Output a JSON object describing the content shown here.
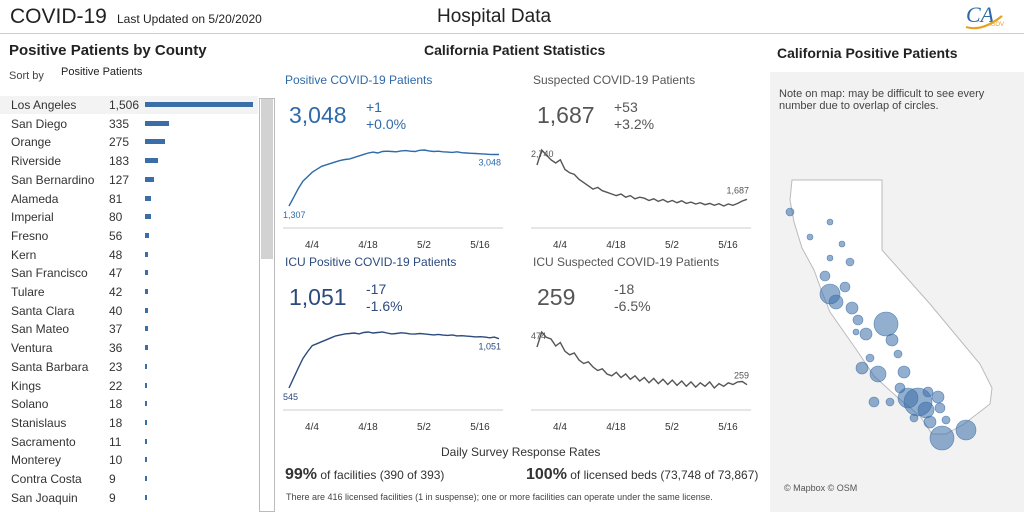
{
  "header": {
    "app_title": "COVID-19",
    "updated": "Last Updated on 5/20/2020",
    "page_title": "Hospital Data",
    "logo_text": "CA.GOV",
    "logo_icon": "ca-gov-logo"
  },
  "left": {
    "title": "Positive Patients by County",
    "sort_label": "Sort by",
    "sort_value": "Positive Patients",
    "counties": [
      {
        "name": "Los Angeles",
        "count": "1,506",
        "value": 1506
      },
      {
        "name": "San Diego",
        "count": "335",
        "value": 335
      },
      {
        "name": "Orange",
        "count": "275",
        "value": 275
      },
      {
        "name": "Riverside",
        "count": "183",
        "value": 183
      },
      {
        "name": "San Bernardino",
        "count": "127",
        "value": 127
      },
      {
        "name": "Alameda",
        "count": "81",
        "value": 81
      },
      {
        "name": "Imperial",
        "count": "80",
        "value": 80
      },
      {
        "name": "Fresno",
        "count": "56",
        "value": 56
      },
      {
        "name": "Kern",
        "count": "48",
        "value": 48
      },
      {
        "name": "San Francisco",
        "count": "47",
        "value": 47
      },
      {
        "name": "Tulare",
        "count": "42",
        "value": 42
      },
      {
        "name": "Santa Clara",
        "count": "40",
        "value": 40
      },
      {
        "name": "San Mateo",
        "count": "37",
        "value": 37
      },
      {
        "name": "Ventura",
        "count": "36",
        "value": 36
      },
      {
        "name": "Santa Barbara",
        "count": "23",
        "value": 23
      },
      {
        "name": "Kings",
        "count": "22",
        "value": 22
      },
      {
        "name": "Solano",
        "count": "18",
        "value": 18
      },
      {
        "name": "Stanislaus",
        "count": "18",
        "value": 18
      },
      {
        "name": "Sacramento",
        "count": "11",
        "value": 11
      },
      {
        "name": "Monterey",
        "count": "10",
        "value": 10
      },
      {
        "name": "Contra Costa",
        "count": "9",
        "value": 9
      },
      {
        "name": "San Joaquin",
        "count": "9",
        "value": 9
      }
    ]
  },
  "middle": {
    "title": "California Patient Statistics",
    "ticks": [
      "4/4",
      "4/18",
      "5/2",
      "5/16"
    ],
    "panels": [
      {
        "label": "Positive COVID-19 Patients",
        "big": "3,048",
        "delta1": "+1",
        "delta2": "+0.0%",
        "start": "1,307",
        "end": "3,048",
        "color": "#2e6aa9",
        "series": [
          1307,
          1600,
          1900,
          2150,
          2300,
          2450,
          2550,
          2650,
          2700,
          2750,
          2800,
          2850,
          2880,
          2900,
          2950,
          3000,
          3050,
          3100,
          3130,
          3100,
          3150,
          3160,
          3150,
          3140,
          3170,
          3180,
          3160,
          3150,
          3190,
          3200,
          3170,
          3150,
          3160,
          3140,
          3130,
          3120,
          3140,
          3110,
          3100,
          3090,
          3080,
          3070,
          3060,
          3050,
          3047,
          3048
        ]
      },
      {
        "label": "Suspected COVID-19 Patients",
        "big": "1,687",
        "delta1": "+53",
        "delta2": "+3.2%",
        "start": "2,740",
        "end": "1,687",
        "color": "#555555",
        "series": [
          2740,
          3200,
          3050,
          2900,
          2800,
          2900,
          2600,
          2500,
          2450,
          2300,
          2200,
          2100,
          2000,
          2050,
          1950,
          1900,
          1850,
          1800,
          1850,
          1750,
          1800,
          1700,
          1750,
          1720,
          1650,
          1700,
          1620,
          1680,
          1600,
          1650,
          1580,
          1640,
          1560,
          1600,
          1540,
          1580,
          1520,
          1560,
          1500,
          1550,
          1480,
          1540,
          1500,
          1560,
          1634,
          1687
        ]
      },
      {
        "label": "ICU Positive COVID-19 Patients",
        "big": "1,051",
        "delta1": "-17",
        "delta2": "-1.6%",
        "start": "545",
        "end": "1,051",
        "color": "#2b4a7e",
        "series": [
          545,
          650,
          750,
          850,
          920,
          980,
          1000,
          1020,
          1040,
          1060,
          1080,
          1090,
          1100,
          1105,
          1110,
          1100,
          1115,
          1120,
          1110,
          1115,
          1120,
          1110,
          1100,
          1105,
          1112,
          1108,
          1100,
          1098,
          1105,
          1100,
          1095,
          1090,
          1095,
          1088,
          1085,
          1090,
          1080,
          1082,
          1078,
          1075,
          1070,
          1072,
          1068,
          1060,
          1068,
          1051
        ]
      },
      {
        "label": "ICU Suspected COVID-19 Patients",
        "big": "259",
        "delta1": "-18",
        "delta2": "-6.5%",
        "start": "474",
        "end": "259",
        "color": "#555555",
        "series": [
          474,
          560,
          530,
          520,
          480,
          500,
          450,
          430,
          440,
          400,
          380,
          390,
          360,
          340,
          350,
          320,
          310,
          330,
          300,
          320,
          290,
          310,
          280,
          300,
          270,
          295,
          265,
          290,
          260,
          285,
          255,
          280,
          250,
          275,
          245,
          270,
          250,
          275,
          240,
          265,
          250,
          270,
          260,
          275,
          277,
          259
        ]
      }
    ],
    "survey_title": "Daily Survey Response Rates",
    "survey1_pct": "99%",
    "survey1_text": " of facilities (390 of 393)",
    "survey2_pct": "100%",
    "survey2_text": " of licensed beds (73,748 of 73,867)",
    "footnote": "There are 416 licensed facilities (1 in suspense); one or more facilities can operate under the same license."
  },
  "right": {
    "title": "California Positive Patients",
    "note": "Note on map: may be difficult to see every number due to overlap of circles.",
    "credit": "© Mapbox © OSM",
    "bubble_color": "#3b6ea8",
    "land_color": "#ffffff"
  }
}
